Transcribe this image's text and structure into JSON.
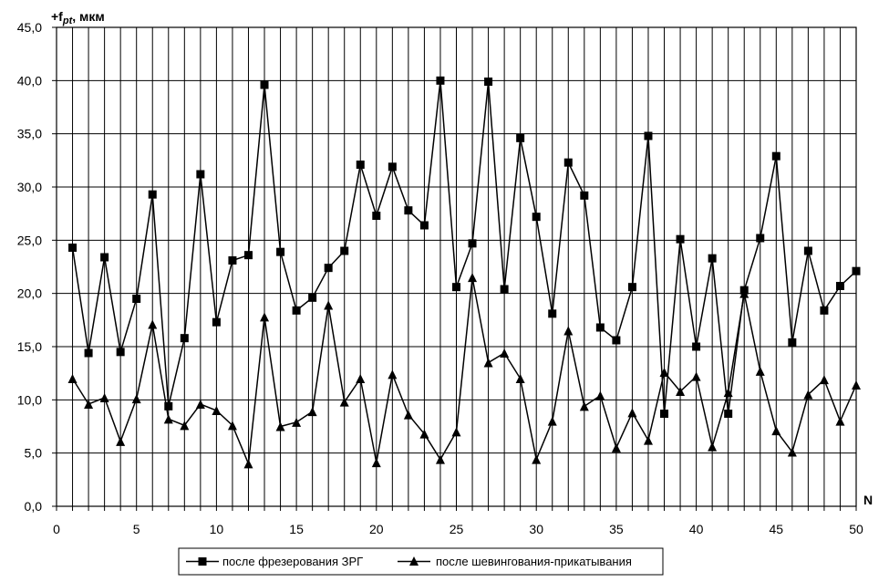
{
  "chart_data": {
    "type": "line",
    "ylabel_prefix": "+f",
    "ylabel_sub": "pt",
    "ylabel_suffix": ", мкм",
    "xlabel": "N",
    "xlim": [
      0,
      50
    ],
    "ylim": [
      0,
      45
    ],
    "x_ticks": [
      "0",
      "5",
      "10",
      "15",
      "20",
      "25",
      "30",
      "35",
      "40",
      "45",
      "50"
    ],
    "y_ticks": [
      "0,0",
      "5,0",
      "10,0",
      "15,0",
      "20,0",
      "25,0",
      "30,0",
      "35,0",
      "40,0",
      "45,0"
    ],
    "grid": true,
    "legend_position": "bottom",
    "x": [
      1,
      2,
      3,
      4,
      5,
      6,
      7,
      8,
      9,
      10,
      11,
      12,
      13,
      14,
      15,
      16,
      17,
      18,
      19,
      20,
      21,
      22,
      23,
      24,
      25,
      26,
      27,
      28,
      29,
      30,
      31,
      32,
      33,
      34,
      35,
      36,
      37,
      38,
      39,
      40,
      41,
      42,
      43,
      44,
      45,
      46,
      47,
      48,
      49,
      50
    ],
    "series": [
      {
        "name": "после фрезерования ЗРГ",
        "marker": "square",
        "color": "#000000",
        "values": [
          24.3,
          14.4,
          23.4,
          14.5,
          19.5,
          29.3,
          9.4,
          15.8,
          31.2,
          17.3,
          23.1,
          23.6,
          39.6,
          23.9,
          18.4,
          19.6,
          22.4,
          24.0,
          32.1,
          27.3,
          31.9,
          27.8,
          26.4,
          40.0,
          20.6,
          24.7,
          39.9,
          20.4,
          34.6,
          27.2,
          18.1,
          32.3,
          29.2,
          16.8,
          15.6,
          20.6,
          34.8,
          8.7,
          25.1,
          15.0,
          23.3,
          8.7,
          20.3,
          25.2,
          32.9,
          15.4,
          24.0,
          18.4,
          20.7,
          22.1
        ]
      },
      {
        "name": "после шевингования-прикатывания",
        "marker": "triangle",
        "color": "#000000",
        "values": [
          12.0,
          9.6,
          10.2,
          6.1,
          10.1,
          17.1,
          8.2,
          7.6,
          9.6,
          9.0,
          7.6,
          4.0,
          17.8,
          7.5,
          7.9,
          8.9,
          18.9,
          9.8,
          12.0,
          4.1,
          12.4,
          8.6,
          6.8,
          4.4,
          7.0,
          21.5,
          13.5,
          14.4,
          12.0,
          4.4,
          8.0,
          16.5,
          9.4,
          10.4,
          5.5,
          8.8,
          6.2,
          12.6,
          10.8,
          12.2,
          5.6,
          10.7,
          20.0,
          12.7,
          7.1,
          5.1,
          10.5,
          11.9,
          8.0,
          11.4
        ]
      }
    ]
  }
}
